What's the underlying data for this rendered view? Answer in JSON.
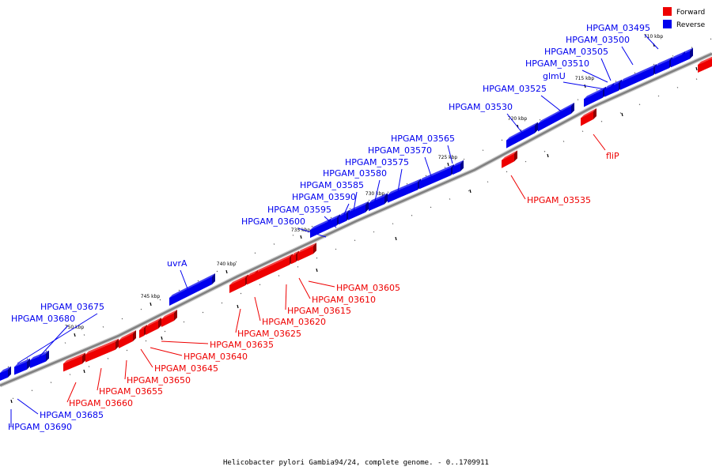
{
  "caption": "Helicobacter pylori Gambia94/24, complete genome. - 0..1709911",
  "legend": [
    {
      "label": "Forward",
      "color": "#ee0000"
    },
    {
      "label": "Reverse",
      "color": "#0000ee"
    }
  ],
  "colors": {
    "forward": "#ee0000",
    "reverse": "#0000ee",
    "backbone": "#808080"
  },
  "tick_labels": [
    "710 kbp",
    "715 kbp",
    "720 kbp",
    "725 kbp",
    "730 kbp",
    "735 kbp",
    "740 kbp",
    "745 kbp",
    "750 kbp"
  ],
  "reverse_genes": [
    "HPGAM_03495",
    "HPGAM_03500",
    "HPGAM_03505",
    "HPGAM_03510",
    "glmU",
    "HPGAM_03525",
    "HPGAM_03530",
    "HPGAM_03565",
    "HPGAM_03570",
    "HPGAM_03575",
    "HPGAM_03580",
    "HPGAM_03585",
    "HPGAM_03590",
    "HPGAM_03595",
    "HPGAM_03600",
    "uvrA",
    "HPGAM_03675",
    "HPGAM_03680",
    "HPGAM_03685",
    "HPGAM_03690"
  ],
  "forward_genes": [
    "fliP",
    "HPGAM_03535",
    "HPGAM_03605",
    "HPGAM_03610",
    "HPGAM_03615",
    "HPGAM_03620",
    "HPGAM_03625",
    "HPGAM_03635",
    "HPGAM_03640",
    "HPGAM_03645",
    "HPGAM_03650",
    "HPGAM_03655",
    "HPGAM_03660"
  ]
}
